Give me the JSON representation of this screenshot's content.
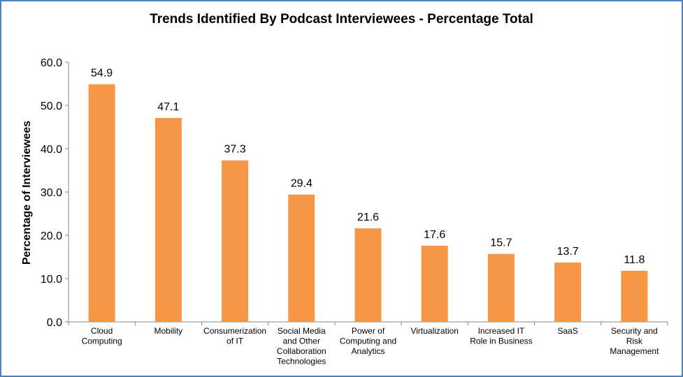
{
  "chart_data": {
    "type": "bar",
    "title": "Trends Identified By Podcast Interviewees  - Percentage Total",
    "xlabel": "",
    "ylabel": "Percentage of Interviewees",
    "ylim": [
      0,
      60
    ],
    "yticks": [
      "0.0",
      "10.0",
      "20.0",
      "30.0",
      "40.0",
      "50.0",
      "60.0"
    ],
    "categories": [
      [
        "Cloud",
        "Computing"
      ],
      [
        "Mobility"
      ],
      [
        "Consumerization",
        "of IT"
      ],
      [
        "Social Media",
        "and Other",
        "Collaboration",
        "Technologies"
      ],
      [
        "Power of",
        "Computing and",
        "Analytics"
      ],
      [
        "Virtualization"
      ],
      [
        "Increased IT",
        "Role in Business"
      ],
      [
        "SaaS"
      ],
      [
        "Security and",
        "Risk",
        "Management"
      ]
    ],
    "values": [
      54.9,
      47.1,
      37.3,
      29.4,
      21.6,
      17.6,
      15.7,
      13.7,
      11.8
    ],
    "data_labels": [
      "54.9",
      "47.1",
      "37.3",
      "29.4",
      "21.6",
      "17.6",
      "15.7",
      "13.7",
      "11.8"
    ],
    "grid": false,
    "legend": "none",
    "colors": {
      "bar": "#f79646",
      "frame": "#4f81bd",
      "axis": "#868686"
    }
  }
}
